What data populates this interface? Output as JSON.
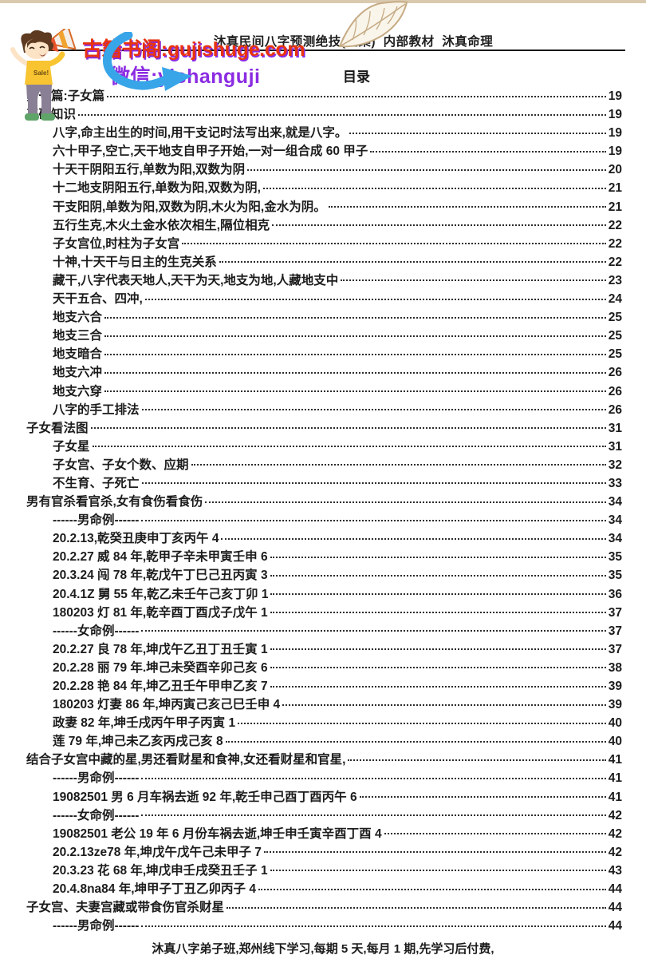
{
  "colors": {
    "top_bar": "#d9c9ae",
    "rule": "#161616",
    "text": "#1c1c1c",
    "watermark_red": "#e8330f",
    "watermark_purple": "#8b2be2",
    "arrow_blue": "#38a5e9",
    "leaf_tan": "#c6ab85"
  },
  "header": {
    "doc_title": "沐真民间八字预测绝技(全集)  内部教材  沐真命理",
    "toc_heading": "目录"
  },
  "watermark": {
    "site_line": "古籍书阁:gujishuge.com",
    "wechat_line": "微信:yishanguji"
  },
  "footer": {
    "text_normal": "沐真八字弟子班,郑州线下学习,每期 5 天,每月 1 期,",
    "text_bold": "先学习后付费,"
  },
  "toc": {
    "entries": [
      {
        "text": "第一篇:子女篇",
        "page": "19",
        "level": 1,
        "bold": true
      },
      {
        "text": "基础知识",
        "page": "19",
        "level": 1,
        "bold": true
      },
      {
        "text": "八字,命主出生的时间,用干支记时法写出来,就是八字。",
        "page": "19",
        "level": 2,
        "bold": false
      },
      {
        "text": "六十甲子,空亡,天干地支自甲子开始,一对一组合成 60 甲子",
        "page": "19",
        "level": 2,
        "bold": false
      },
      {
        "text": "十天干阴阳五行,单数为阳,双数为阴",
        "page": "20",
        "level": 2,
        "bold": false
      },
      {
        "text": "十二地支阴阳五行,单数为阳,双数为阴,",
        "page": "21",
        "level": 2,
        "bold": false
      },
      {
        "text": "干支阳阴,单数为阳,双数为阴,木火为阳,金水为阴。",
        "page": "21",
        "level": 2,
        "bold": false
      },
      {
        "text": "五行生克,木火土金水依次相生,隔位相克",
        "page": "22",
        "level": 2,
        "bold": false
      },
      {
        "text": "子女宫位,时柱为子女宫",
        "page": "22",
        "level": 2,
        "bold": false
      },
      {
        "text": "十神,十天干与日主的生克关系",
        "page": "22",
        "level": 2,
        "bold": false
      },
      {
        "text": "藏干,八字代表天地人,天干为天,地支为地,人藏地支中",
        "page": "23",
        "level": 2,
        "bold": false
      },
      {
        "text": "天干五合、四冲,",
        "page": "24",
        "level": 2,
        "bold": false
      },
      {
        "text": "地支六合",
        "page": "25",
        "level": 2,
        "bold": false
      },
      {
        "text": "地支三合",
        "page": "25",
        "level": 2,
        "bold": false
      },
      {
        "text": "地支暗合",
        "page": "25",
        "level": 2,
        "bold": false
      },
      {
        "text": "地支六冲",
        "page": "26",
        "level": 2,
        "bold": false
      },
      {
        "text": "地支六穿",
        "page": "26",
        "level": 2,
        "bold": false
      },
      {
        "text": "八字的手工排法",
        "page": "26",
        "level": 2,
        "bold": false
      },
      {
        "text": "子女看法图",
        "page": "31",
        "level": 1,
        "bold": true
      },
      {
        "text": "子女星",
        "page": "31",
        "level": 2,
        "bold": false
      },
      {
        "text": "子女宫、子女个数、应期",
        "page": "32",
        "level": 2,
        "bold": false
      },
      {
        "text": "不生育、子死亡",
        "page": "33",
        "level": 2,
        "bold": false
      },
      {
        "text": "男有官杀看官杀,女有食伤看食伤",
        "page": "34",
        "level": 1,
        "bold": true
      },
      {
        "text": "------男命例------",
        "page": "34",
        "level": 2,
        "bold": false
      },
      {
        "text": "20.2.13,乾癸丑庚申丁亥丙午 4",
        "page": "34",
        "level": 2,
        "bold": false
      },
      {
        "text": "20.2.27 威 84 年,乾甲子辛未甲寅壬申 6",
        "page": "35",
        "level": 2,
        "bold": false
      },
      {
        "text": "20.3.24 闯 78 年,乾戊午丁巳己丑丙寅 3",
        "page": "35",
        "level": 2,
        "bold": false
      },
      {
        "text": "20.4.1Z 舅 55 年,乾乙未壬午己亥丁卯 1",
        "page": "36",
        "level": 2,
        "bold": false
      },
      {
        "text": "180203 灯 81 年,乾辛酉丁酉戊子戊午 1",
        "page": "37",
        "level": 2,
        "bold": false
      },
      {
        "text": "------女命例------",
        "page": "37",
        "level": 2,
        "bold": false
      },
      {
        "text": "20.2.27 良 78 年,坤戊午乙丑丁丑壬寅 1",
        "page": "37",
        "level": 2,
        "bold": false
      },
      {
        "text": "20.2.28 丽 79 年.坤己未癸酉辛卯己亥 6",
        "page": "38",
        "level": 2,
        "bold": false
      },
      {
        "text": "20.2.28 艳 84 年,坤乙丑壬午甲申乙亥 7",
        "page": "39",
        "level": 2,
        "bold": false
      },
      {
        "text": "180203 灯妻 86 年,坤丙寅己亥己巳壬申 4",
        "page": "39",
        "level": 2,
        "bold": false
      },
      {
        "text": "政妻 82 年,坤壬戌丙午甲子丙寅 1",
        "page": "40",
        "level": 2,
        "bold": false
      },
      {
        "text": "莲 79 年,坤己未乙亥丙戌己亥 8",
        "page": "40",
        "level": 2,
        "bold": false
      },
      {
        "text": "结合子女宫中藏的星,男还看财星和食神,女还看财星和官星,",
        "page": "41",
        "level": 1,
        "bold": true
      },
      {
        "text": "------男命例------",
        "page": "41",
        "level": 2,
        "bold": false
      },
      {
        "text": "19082501 男 6 月车祸去逝 92 年,乾壬申己酉丁酉丙午 6",
        "page": "41",
        "level": 2,
        "bold": false
      },
      {
        "text": "------女命例------",
        "page": "42",
        "level": 2,
        "bold": false
      },
      {
        "text": "19082501 老公 19 年 6 月份车祸去逝,坤壬申壬寅辛酉丁酉 4",
        "page": "42",
        "level": 2,
        "bold": false
      },
      {
        "text": "20.2.13ze78 年,坤戊午戊午己未甲子 7",
        "page": "42",
        "level": 2,
        "bold": false
      },
      {
        "text": "20.3.23 花 68 年,坤戊申壬戌癸丑壬子 1",
        "page": "43",
        "level": 2,
        "bold": false
      },
      {
        "text": "20.4.8na84 年,坤甲子丁丑乙卯丙子 4",
        "page": "44",
        "level": 2,
        "bold": false
      },
      {
        "text": "子女宫、夫妻宫藏或带食伤官杀财星",
        "page": "44",
        "level": 1,
        "bold": true
      },
      {
        "text": "------男命例------",
        "page": "44",
        "level": 2,
        "bold": false
      }
    ]
  }
}
